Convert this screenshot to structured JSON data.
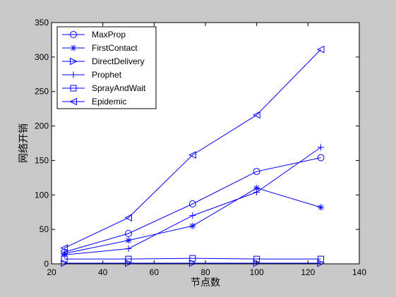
{
  "chart_data": {
    "type": "line",
    "title": "",
    "xlabel": "节点数",
    "ylabel": "网络开销",
    "xlim": [
      20,
      140
    ],
    "ylim": [
      0,
      350
    ],
    "xticks": [
      20,
      40,
      60,
      80,
      100,
      120,
      140
    ],
    "yticks": [
      0,
      50,
      100,
      150,
      200,
      250,
      300,
      350
    ],
    "grid": false,
    "legend_position": "top-left",
    "line_color": "#0000ff",
    "x": [
      25,
      50,
      75,
      100,
      125
    ],
    "series": [
      {
        "name": "MaxProp",
        "marker": "circle",
        "values": [
          17,
          44,
          87,
          134,
          154
        ]
      },
      {
        "name": "FirstContact",
        "marker": "asterisk",
        "values": [
          15,
          34,
          55,
          110,
          82
        ]
      },
      {
        "name": "DirectDelivery",
        "marker": "triangle-right",
        "values": [
          1,
          1,
          1,
          1,
          1
        ]
      },
      {
        "name": "Prophet",
        "marker": "plus",
        "values": [
          13,
          22,
          70,
          104,
          169
        ]
      },
      {
        "name": "SprayAndWait",
        "marker": "square",
        "values": [
          7,
          7,
          8,
          7,
          7
        ]
      },
      {
        "name": "Epidemic",
        "marker": "triangle-left",
        "values": [
          23,
          67,
          158,
          216,
          311
        ]
      }
    ]
  }
}
